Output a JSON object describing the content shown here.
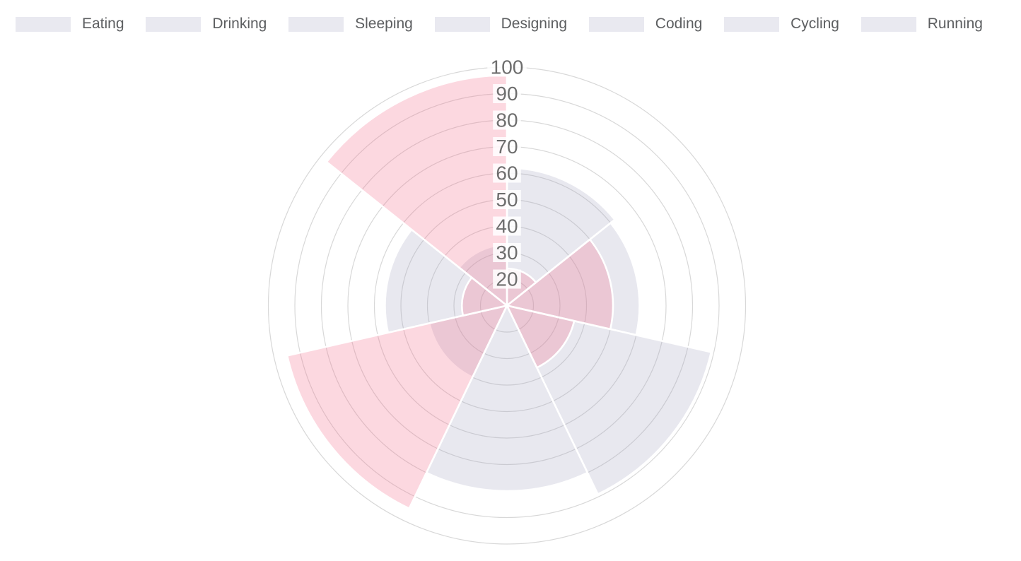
{
  "legend": {
    "items": [
      {
        "label": "Eating"
      },
      {
        "label": "Drinking"
      },
      {
        "label": "Sleeping"
      },
      {
        "label": "Designing"
      },
      {
        "label": "Coding"
      },
      {
        "label": "Cycling"
      },
      {
        "label": "Running"
      }
    ],
    "swatch_color": "#E9E9F0",
    "label_color": "#5C5E60"
  },
  "chart_data": {
    "type": "polarArea",
    "categories": [
      "Eating",
      "Drinking",
      "Sleeping",
      "Designing",
      "Coding",
      "Cycling",
      "Running"
    ],
    "series": [
      {
        "name": "gray",
        "color": "#A5A5C3",
        "fill_opacity": 0.26,
        "values": [
          62,
          60,
          89,
          80,
          40,
          56,
          33
        ]
      },
      {
        "name": "pink",
        "color": "#F47290",
        "fill_opacity": 0.28,
        "values": [
          24,
          50,
          36,
          10,
          95,
          27,
          97
        ]
      }
    ],
    "scale": {
      "min": 10,
      "max": 100,
      "step": 10,
      "ticks_shown": [
        20,
        30,
        40,
        50,
        60,
        70,
        80,
        90,
        100
      ],
      "tick_label_color": "#6E6E6E",
      "tick_backdrop_color": "rgba(255,255,255,0.85)"
    },
    "grid": {
      "show": true,
      "color": "#D8D8D8",
      "line_width": 1.2
    },
    "sector_border": {
      "color": "#FFFFFF",
      "width": 2.6
    },
    "start_angle_deg": -90,
    "direction": "clockwise",
    "legend_position": "top",
    "title": ""
  }
}
